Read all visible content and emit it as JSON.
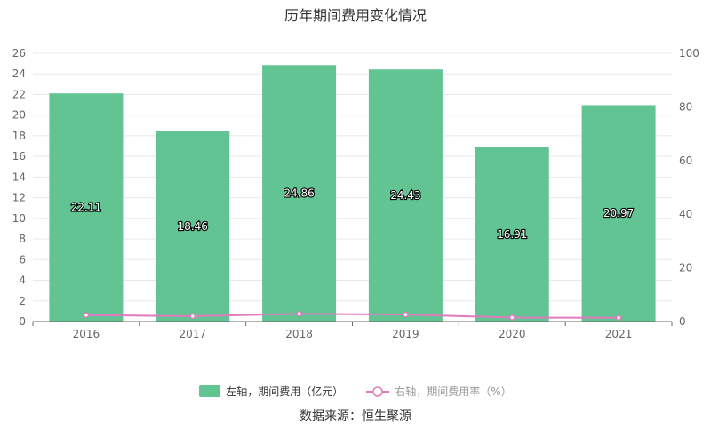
{
  "colors": {
    "bar": "#62c393",
    "line": "#e07bbd",
    "grid": "#e8e8e8",
    "axis": "#666666"
  },
  "chart_data": {
    "type": "bar",
    "title": "历年期间费用变化情况",
    "categories": [
      "2016",
      "2017",
      "2018",
      "2019",
      "2020",
      "2021"
    ],
    "series": [
      {
        "name": "左轴，期间费用（亿元）",
        "type": "bar",
        "axis": "left",
        "values": [
          22.11,
          18.46,
          24.86,
          24.43,
          16.91,
          20.97
        ]
      },
      {
        "name": "右轴，期间费用率（%）",
        "type": "line",
        "axis": "right",
        "values": [
          2.4,
          2.0,
          2.9,
          2.6,
          1.5,
          1.4
        ]
      }
    ],
    "y_left": {
      "min": 0,
      "max": 26,
      "ticks": [
        0,
        2,
        4,
        6,
        8,
        10,
        12,
        14,
        16,
        18,
        20,
        22,
        24,
        26
      ]
    },
    "y_right": {
      "min": 0,
      "max": 100,
      "ticks": [
        0,
        20,
        40,
        60,
        80,
        100
      ]
    },
    "grid": true,
    "legend": "bottom-center"
  },
  "source": "数据来源：恒生聚源"
}
